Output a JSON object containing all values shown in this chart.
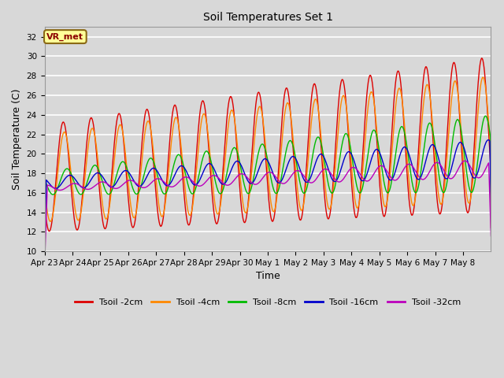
{
  "title": "Soil Temperatures Set 1",
  "xlabel": "Time",
  "ylabel": "Soil Temperature (C)",
  "ylim": [
    10,
    33
  ],
  "yticks": [
    10,
    12,
    14,
    16,
    18,
    20,
    22,
    24,
    26,
    28,
    30,
    32
  ],
  "annotation": "VR_met",
  "annotation_color": "#8B0000",
  "annotation_bg": "#FFFF99",
  "annotation_edge": "#8B6914",
  "series_colors": [
    "#DD0000",
    "#FF8800",
    "#00BB00",
    "#0000CC",
    "#BB00BB"
  ],
  "series_labels": [
    "Tsoil -2cm",
    "Tsoil -4cm",
    "Tsoil -8cm",
    "Tsoil -16cm",
    "Tsoil -32cm"
  ],
  "bg_color": "#D8D8D8",
  "grid_color": "#FFFFFF",
  "n_days": 16,
  "points_per_day": 48,
  "tick_labels": [
    "Apr 23",
    "Apr 24",
    "Apr 25",
    "Apr 26",
    "Apr 27",
    "Apr 28",
    "Apr 29",
    "Apr 30",
    "May 1",
    "May 2",
    "May 3",
    "May 4",
    "May 5",
    "May 6",
    "May 7",
    "May 8"
  ]
}
